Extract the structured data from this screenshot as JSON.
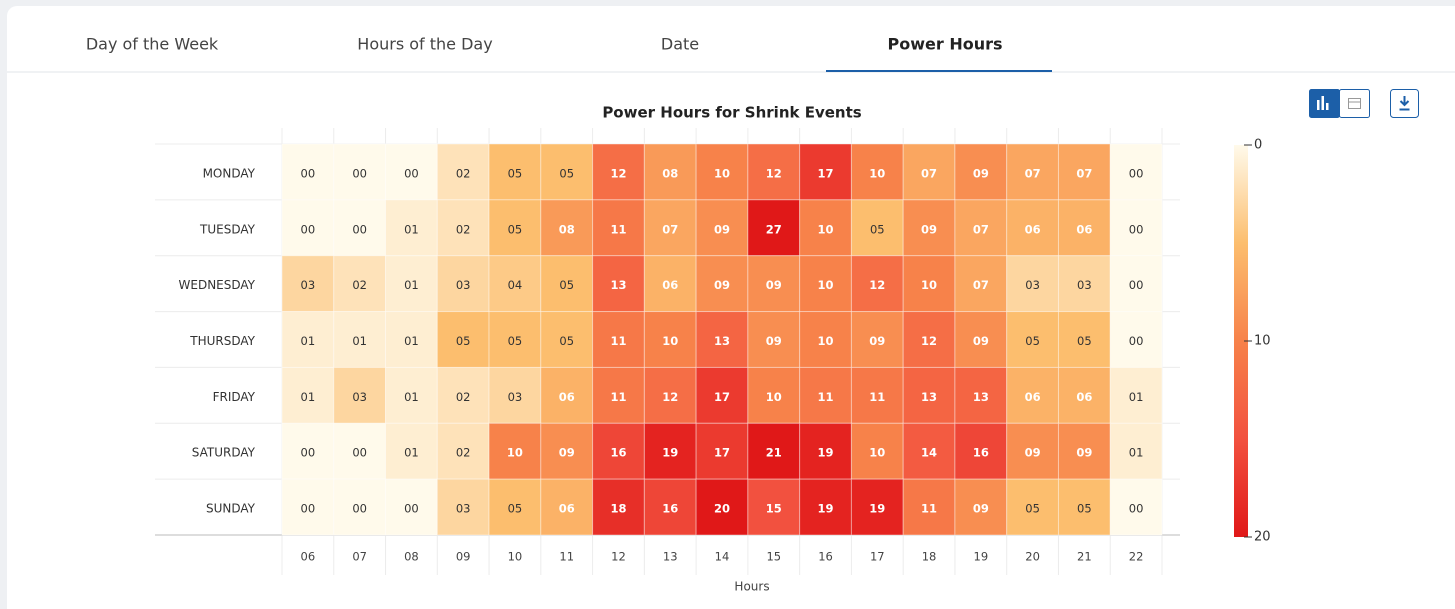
{
  "tabs": [
    "Day of the Week",
    "Hours of the Day",
    "Date",
    "Power Hours"
  ],
  "active_tab": 3,
  "chart_data": {
    "type": "heatmap",
    "title": "Power Hours for Shrink Events",
    "x_label": "Hours",
    "x": [
      "06",
      "07",
      "08",
      "09",
      "10",
      "11",
      "12",
      "13",
      "14",
      "15",
      "16",
      "17",
      "18",
      "19",
      "20",
      "21",
      "22"
    ],
    "y": [
      "MONDAY",
      "TUESDAY",
      "WEDNESDAY",
      "THURSDAY",
      "FRIDAY",
      "SATURDAY",
      "SUNDAY"
    ],
    "values": [
      [
        0,
        0,
        0,
        2,
        5,
        5,
        12,
        8,
        10,
        12,
        17,
        10,
        7,
        9,
        7,
        7,
        0
      ],
      [
        0,
        0,
        1,
        2,
        5,
        8,
        11,
        7,
        9,
        27,
        10,
        5,
        9,
        7,
        6,
        6,
        0
      ],
      [
        3,
        2,
        1,
        3,
        4,
        5,
        13,
        6,
        9,
        9,
        10,
        12,
        10,
        7,
        3,
        3,
        0
      ],
      [
        1,
        1,
        1,
        5,
        5,
        5,
        11,
        10,
        13,
        9,
        10,
        9,
        12,
        9,
        5,
        5,
        0
      ],
      [
        1,
        3,
        1,
        2,
        3,
        6,
        11,
        12,
        17,
        10,
        11,
        11,
        13,
        13,
        6,
        6,
        1
      ],
      [
        0,
        0,
        1,
        2,
        10,
        9,
        16,
        19,
        17,
        21,
        19,
        10,
        14,
        16,
        9,
        9,
        1
      ],
      [
        0,
        0,
        0,
        3,
        5,
        6,
        18,
        16,
        20,
        15,
        19,
        19,
        11,
        9,
        5,
        5,
        0
      ]
    ],
    "value_labels": [
      [
        "00",
        "00",
        "00",
        "02",
        "05",
        "05",
        "12",
        "08",
        "10",
        "12",
        "17",
        "10",
        "07",
        "09",
        "07",
        "07",
        "00"
      ],
      [
        "00",
        "00",
        "01",
        "02",
        "05",
        "08",
        "11",
        "07",
        "09",
        "27",
        "10",
        "05",
        "09",
        "07",
        "06",
        "06",
        "00"
      ],
      [
        "03",
        "02",
        "01",
        "03",
        "04",
        "05",
        "13",
        "06",
        "09",
        "09",
        "10",
        "12",
        "10",
        "07",
        "03",
        "03",
        "00"
      ],
      [
        "01",
        "01",
        "01",
        "05",
        "05",
        "05",
        "11",
        "10",
        "13",
        "09",
        "10",
        "09",
        "12",
        "09",
        "05",
        "05",
        "00"
      ],
      [
        "01",
        "03",
        "01",
        "02",
        "03",
        "06",
        "11",
        "12",
        "17",
        "10",
        "11",
        "11",
        "13",
        "13",
        "06",
        "06",
        "01"
      ],
      [
        "00",
        "00",
        "01",
        "02",
        "10",
        "09",
        "16",
        "19",
        "17",
        "21",
        "19",
        "10",
        "14",
        "16",
        "09",
        "09",
        "01"
      ],
      [
        "00",
        "00",
        "00",
        "03",
        "05",
        "06",
        "18",
        "16",
        "20",
        "15",
        "19",
        "19",
        "11",
        "09",
        "05",
        "05",
        "00"
      ]
    ],
    "colorbar": {
      "lim": [
        0,
        20
      ],
      "ticks": [
        0,
        10,
        20
      ],
      "colors": [
        "#fffaeb",
        "#fcbe6e",
        "#f7824a",
        "#f2513f",
        "#e01818"
      ]
    }
  }
}
